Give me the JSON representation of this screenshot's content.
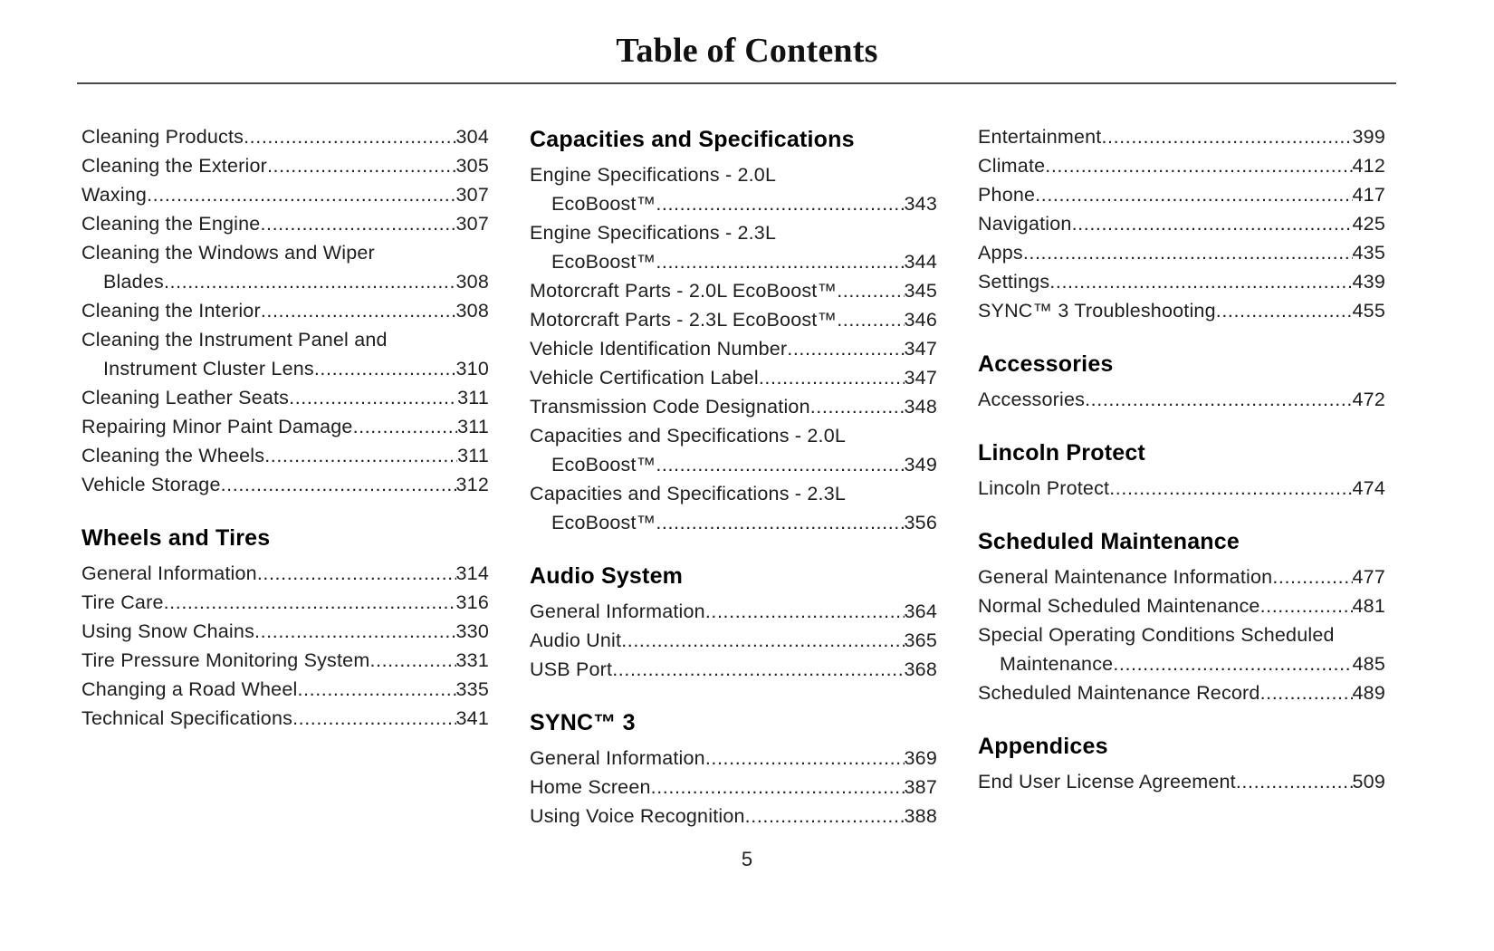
{
  "page": {
    "title": "Table of Contents",
    "page_number": "5"
  },
  "columns": [
    {
      "blocks": [
        {
          "heading": null,
          "entries": [
            {
              "lines": [
                "Cleaning Products"
              ],
              "page": "304"
            },
            {
              "lines": [
                "Cleaning the Exterior"
              ],
              "page": "305"
            },
            {
              "lines": [
                "Waxing"
              ],
              "page": "307"
            },
            {
              "lines": [
                "Cleaning the Engine"
              ],
              "page": "307"
            },
            {
              "lines": [
                "Cleaning the Windows and Wiper",
                "Blades"
              ],
              "page": "308"
            },
            {
              "lines": [
                "Cleaning the Interior"
              ],
              "page": "308"
            },
            {
              "lines": [
                "Cleaning the Instrument Panel and",
                "Instrument Cluster Lens"
              ],
              "page": "310"
            },
            {
              "lines": [
                "Cleaning Leather Seats"
              ],
              "page": "311"
            },
            {
              "lines": [
                "Repairing Minor Paint Damage"
              ],
              "page": "311"
            },
            {
              "lines": [
                "Cleaning the Wheels"
              ],
              "page": "311"
            },
            {
              "lines": [
                "Vehicle Storage"
              ],
              "page": "312"
            }
          ]
        },
        {
          "heading": "Wheels and Tires",
          "entries": [
            {
              "lines": [
                "General Information"
              ],
              "page": "314"
            },
            {
              "lines": [
                "Tire Care"
              ],
              "page": "316"
            },
            {
              "lines": [
                "Using Snow Chains"
              ],
              "page": "330"
            },
            {
              "lines": [
                "Tire Pressure Monitoring System"
              ],
              "page": "331"
            },
            {
              "lines": [
                "Changing a Road Wheel"
              ],
              "page": "335"
            },
            {
              "lines": [
                "Technical Specifications"
              ],
              "page": "341"
            }
          ]
        }
      ]
    },
    {
      "blocks": [
        {
          "heading": "Capacities and Specifications",
          "entries": [
            {
              "lines": [
                "Engine Specifications - 2.0L",
                "EcoBoost™"
              ],
              "page": "343"
            },
            {
              "lines": [
                "Engine Specifications - 2.3L",
                "EcoBoost™"
              ],
              "page": "344"
            },
            {
              "lines": [
                "Motorcraft Parts - 2.0L EcoBoost™"
              ],
              "page": "345"
            },
            {
              "lines": [
                "Motorcraft Parts - 2.3L EcoBoost™"
              ],
              "page": "346"
            },
            {
              "lines": [
                "Vehicle Identification Number"
              ],
              "page": "347"
            },
            {
              "lines": [
                "Vehicle Certification Label"
              ],
              "page": "347"
            },
            {
              "lines": [
                "Transmission Code Designation"
              ],
              "page": "348"
            },
            {
              "lines": [
                "Capacities and Specifications - 2.0L",
                "EcoBoost™"
              ],
              "page": "349"
            },
            {
              "lines": [
                "Capacities and Specifications - 2.3L",
                "EcoBoost™"
              ],
              "page": "356"
            }
          ]
        },
        {
          "heading": "Audio System",
          "entries": [
            {
              "lines": [
                "General Information"
              ],
              "page": "364"
            },
            {
              "lines": [
                "Audio Unit"
              ],
              "page": "365"
            },
            {
              "lines": [
                "USB Port"
              ],
              "page": "368"
            }
          ]
        },
        {
          "heading": "SYNC™ 3",
          "entries": [
            {
              "lines": [
                "General Information"
              ],
              "page": "369"
            },
            {
              "lines": [
                "Home Screen"
              ],
              "page": "387"
            },
            {
              "lines": [
                "Using Voice Recognition"
              ],
              "page": "388"
            }
          ]
        }
      ]
    },
    {
      "blocks": [
        {
          "heading": null,
          "entries": [
            {
              "lines": [
                "Entertainment"
              ],
              "page": "399"
            },
            {
              "lines": [
                "Climate"
              ],
              "page": "412"
            },
            {
              "lines": [
                "Phone"
              ],
              "page": "417"
            },
            {
              "lines": [
                "Navigation"
              ],
              "page": "425"
            },
            {
              "lines": [
                "Apps"
              ],
              "page": "435"
            },
            {
              "lines": [
                "Settings"
              ],
              "page": "439"
            },
            {
              "lines": [
                "SYNC™ 3 Troubleshooting"
              ],
              "page": "455"
            }
          ]
        },
        {
          "heading": "Accessories",
          "entries": [
            {
              "lines": [
                "Accessories"
              ],
              "page": "472"
            }
          ]
        },
        {
          "heading": "Lincoln Protect",
          "entries": [
            {
              "lines": [
                "Lincoln Protect"
              ],
              "page": "474"
            }
          ]
        },
        {
          "heading": "Scheduled Maintenance",
          "entries": [
            {
              "lines": [
                "General Maintenance Information"
              ],
              "page": "477"
            },
            {
              "lines": [
                "Normal Scheduled Maintenance"
              ],
              "page": "481"
            },
            {
              "lines": [
                "Special Operating Conditions Scheduled",
                "Maintenance"
              ],
              "page": "485"
            },
            {
              "lines": [
                "Scheduled Maintenance Record"
              ],
              "page": "489"
            }
          ]
        },
        {
          "heading": "Appendices",
          "entries": [
            {
              "lines": [
                "End User License Agreement"
              ],
              "page": "509"
            }
          ]
        }
      ]
    }
  ]
}
